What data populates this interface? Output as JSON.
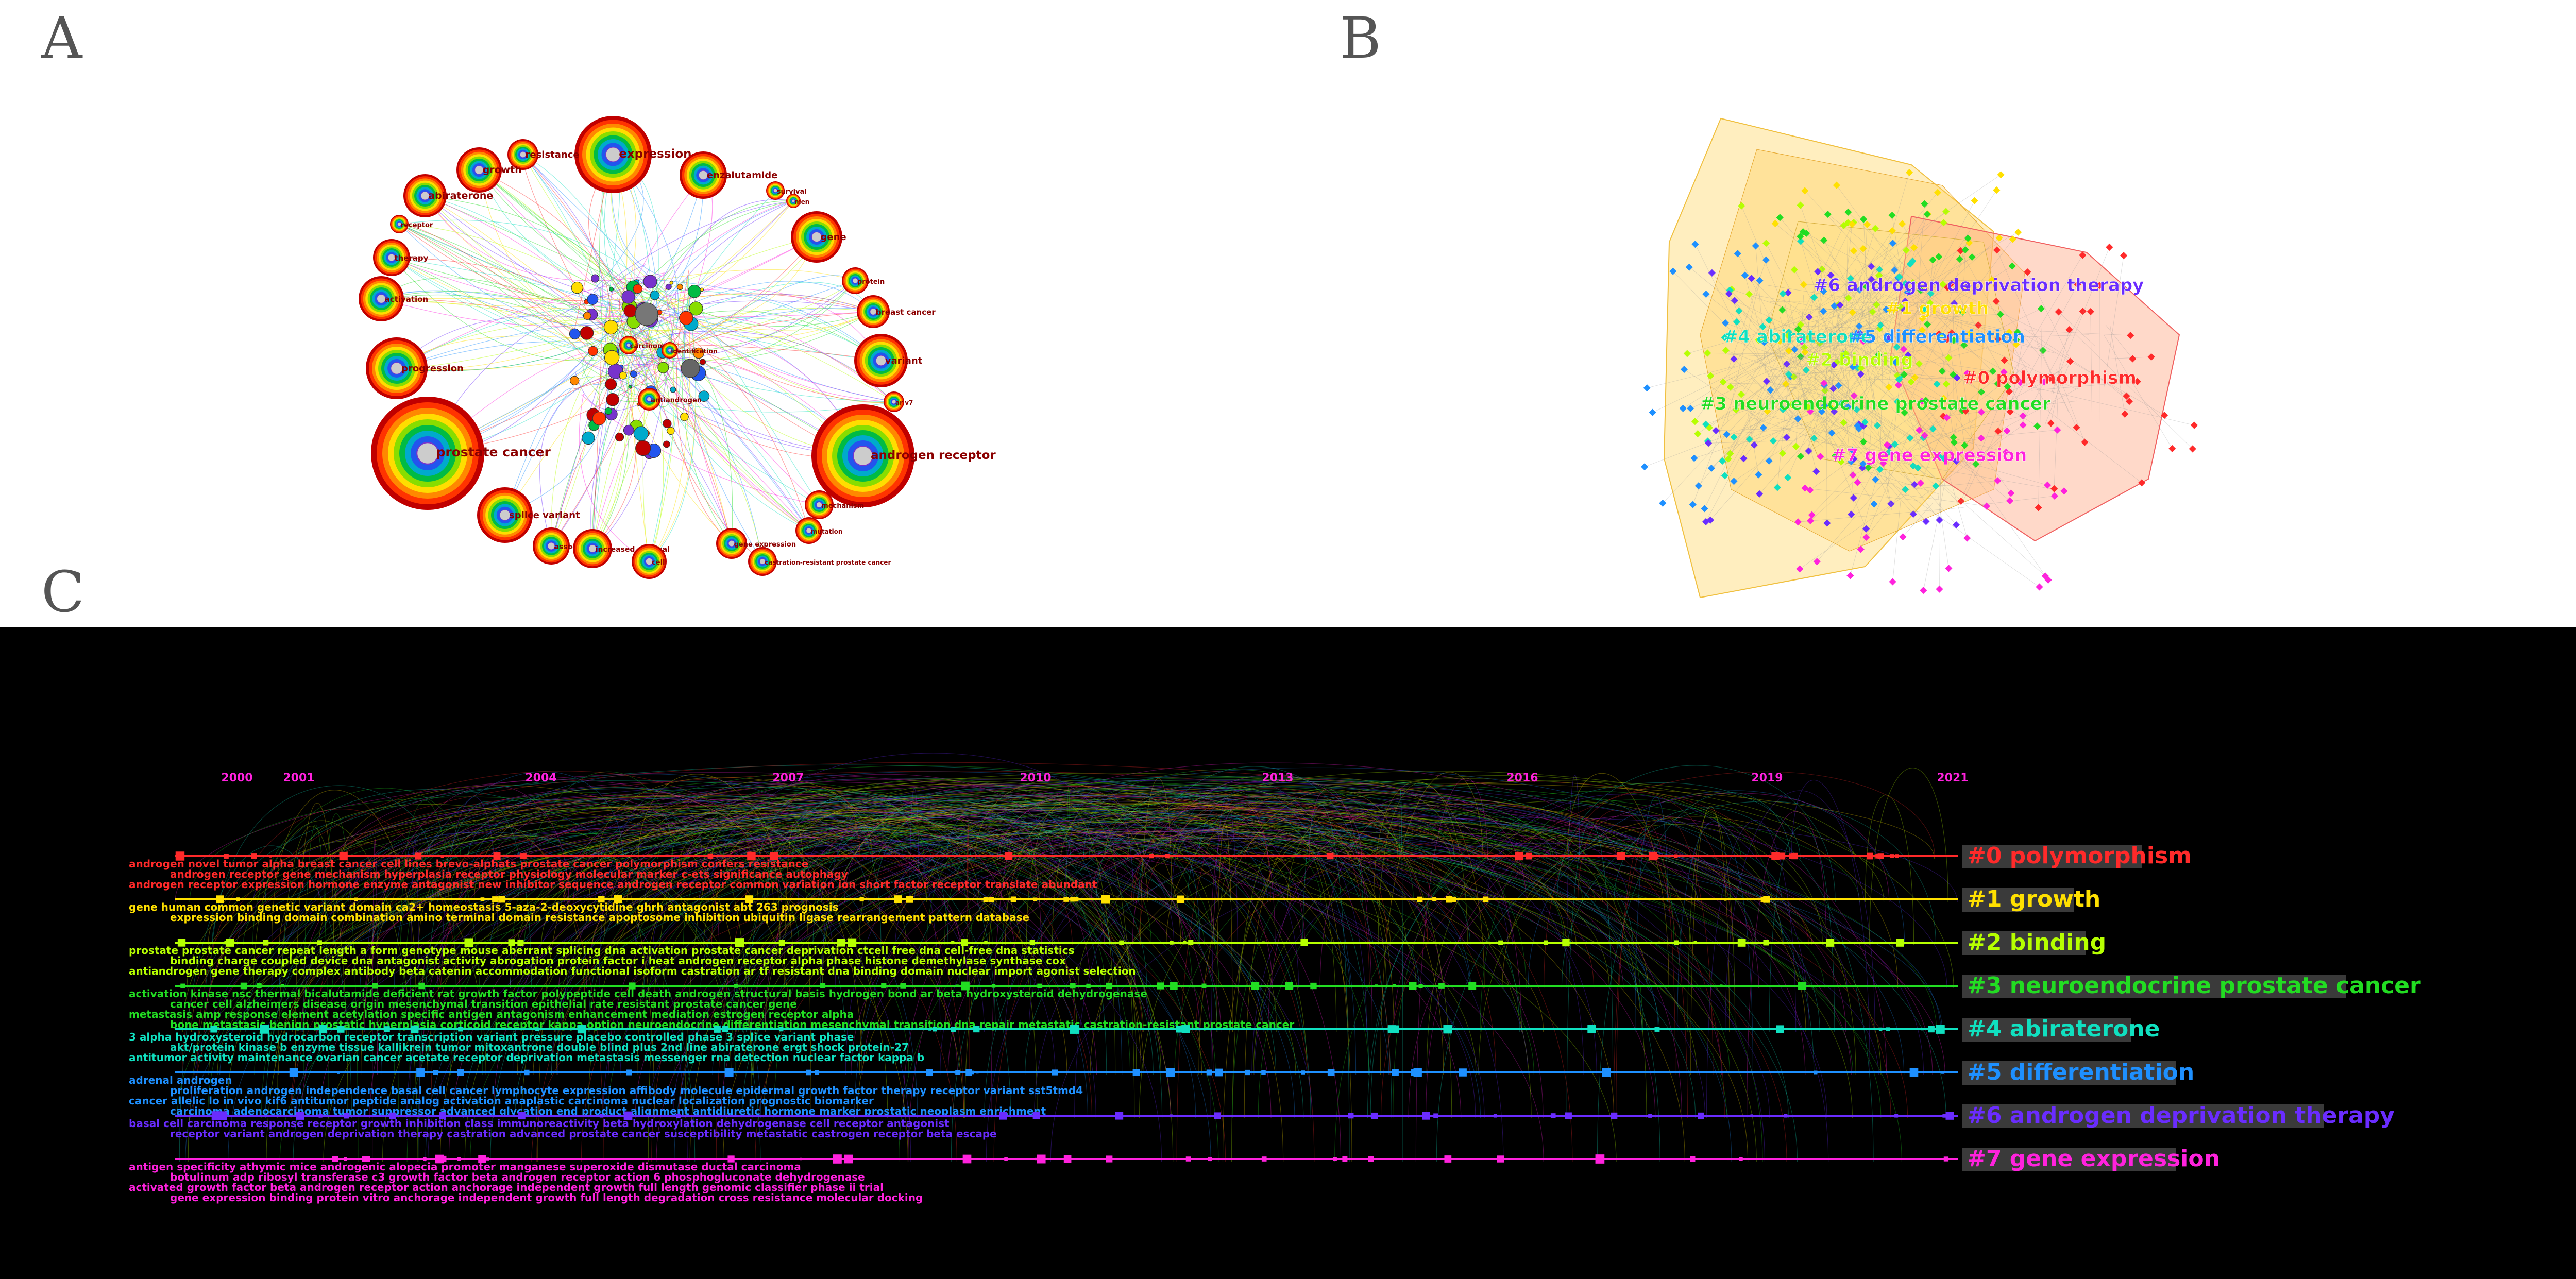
{
  "panel_letters": {
    "a": "A",
    "b": "B",
    "c": "C"
  },
  "colors": {
    "cluster0": "#ff2a2a",
    "cluster1": "#ffe000",
    "cluster2": "#b6ff00",
    "cluster3": "#22dd22",
    "cluster4": "#10e0c0",
    "cluster5": "#1e90ff",
    "cluster6": "#6a2cff",
    "cluster7": "#ff22dd",
    "year": "#ff22dd",
    "label_dark": "#8b0000"
  },
  "panelA": {
    "keywords": [
      "expression",
      "resistance",
      "growth",
      "enzalutamide",
      "survival",
      "men",
      "abiraterone",
      "receptor",
      "gene",
      "therapy",
      "protein",
      "breast cancer",
      "activation",
      "carcinoma",
      "identification",
      "variant",
      "progression",
      "antiandrogen",
      "ar v7",
      "prostate cancer",
      "androgen receptor",
      "mechanism",
      "splice variant",
      "mutation",
      "association",
      "increased survival",
      "cell",
      "gene expression",
      "castration-resistant prostate cancer"
    ]
  },
  "panelB": {
    "clusters": [
      "#6 androgen deprivation therapy",
      "#1 growth",
      "#4 abiraterone",
      "#5 differentiation",
      "#2 binding",
      "#0 polymorphism",
      "#3 neuroendocrine prostate cancer",
      "#7 gene expression"
    ]
  },
  "panelC": {
    "years": [
      "2000",
      "2001",
      "2004",
      "2007",
      "2010",
      "2013",
      "2016",
      "2019",
      "2021"
    ],
    "clusters": [
      {
        "label": "#0 polymorphism",
        "rows": [
          "androgen    novel  tumor  alpha    breast cancer  cell lines   brevo-alphats  prostate cancer   polymorphism                                      confers resistance",
          "androgen receptor gene   mechanism   hyperplasia    receptor physiology   molecular marker   c-ets   significance                                     autophagy",
          "androgen receptor expression   hormone   enzyme   antagonist   new inhibitor   sequence   androgen receptor   common variation   ion   short factor receptor   translate   abundant"
        ]
      },
      {
        "label": "#1 growth",
        "rows": [
          "gene   human   common   genetic variant   domain   ca2+ homeostasis   5-aza-2-deoxycytidine   ghrh antagonist                       abt 263   prognosis",
          "expression   binding domain   combination   amino terminal domain   resistance   apoptosome   inhibition   ubiquitin ligase   rearrangement   pattern   database"
        ]
      },
      {
        "label": "#2 binding",
        "rows": [
          "prostate   prostate cancer   repeat length   a form   genotype   mouse   aberrant splicing   dna activation   prostate cancer   deprivation   ctcell free dna   cell-free dna   statistics",
          "binding   charge coupled device   dna   antagonist   activity   abrogation   protein   factor i   heat   androgen receptor   alpha   phase   histone   demethylase   synthase   cox",
          "antiandrogen   gene therapy   complex   antibody   beta catenin   accommodation   functional   isoform   castration   ar tf   resistant   dna   binding domain   nuclear import   agonist   selection"
        ]
      },
      {
        "label": "#3 neuroendocrine prostate cancer",
        "rows": [
          "activation   kinase   nsc   thermal   bicalutamide   deficient   rat   growth factor   polypeptide   cell death   androgen   structural   basis   hydrogen bond   ar   beta   hydroxysteroid   dehydrogenase",
          "cancer cell   alzheimers disease   origin   mesenchymal transition   epithelial   rate   resistant prostate cancer   gene",
          "metastasis   amp response element   acetylation   specific antigen   antagonism   enhancement   mediation   estrogen receptor alpha",
          "bone metastasis   benign prostatic hyperplasia   corticoid   receptor kappa   option   neuroendocrine differentiation   mesenchymal transition   dna repair   metastatic castration-resistant prostate cancer"
        ]
      },
      {
        "label": "#4 abiraterone",
        "rows": [
          "3 alpha hydroxysteroid   hydrocarbon   receptor   transcription   variant   pressure   placebo   controlled   phase 3   splice variant   phase",
          "akt/protein kinase b   enzyme   tissue   kallikrein   tumor   mitoxantrone   double blind   plus   2nd line   abiraterone   ergt   shock protein-27",
          "antitumor   activity   maintenance   ovarian cancer   acetate   receptor   deprivation   metastasis   messenger   rna   detection   nuclear factor kappa b"
        ]
      },
      {
        "label": "#5 differentiation",
        "rows": [
          "adrenal androgen",
          "proliferation   androgen independence   basal cell cancer   lymphocyte   expression   affibody molecule   epidermal growth factor   therapy   receptor variant   sst5tmd4",
          "cancer   allelic lo   in vivo   kif6   antitumor   peptide   analog   activation   anaplastic carcinoma   nuclear localization   prognostic biomarker",
          "carcinoma   adenocarcinoma   tumor suppressor   advanced glycation end product   alignment   antidiuretic hormone   marker   prostatic neoplasm   enrichment"
        ]
      },
      {
        "label": "#6 androgen deprivation therapy",
        "rows": [
          "basal cell carcinoma   response   receptor   growth inhibition   class   immunoreactivity   beta hydroxylation   dehydrogenase   cell   receptor antagonist",
          "receptor   variant   androgen deprivation   therapy   castration   advanced prostate cancer   susceptibility   metastatic   castrogen receptor   beta   escape"
        ]
      },
      {
        "label": "#7 gene expression",
        "rows": [
          "antigen   specificity   athymic mice   androgenic   alopecia   promoter   manganese superoxide dismutase   ductal carcinoma",
          "botulinum   adp   ribosyl   transferase   c3   growth factor beta   androgen receptor action                6 phosphogluconate dehydrogenase",
          "activated   growth factor beta   androgen receptor action   anchorage independent growth   full length   genomic classifier   phase ii trial",
          "gene expression   binding protein   vitro   anchorage independent growth   full length   degradation   cross resistance   molecular docking"
        ]
      }
    ]
  }
}
